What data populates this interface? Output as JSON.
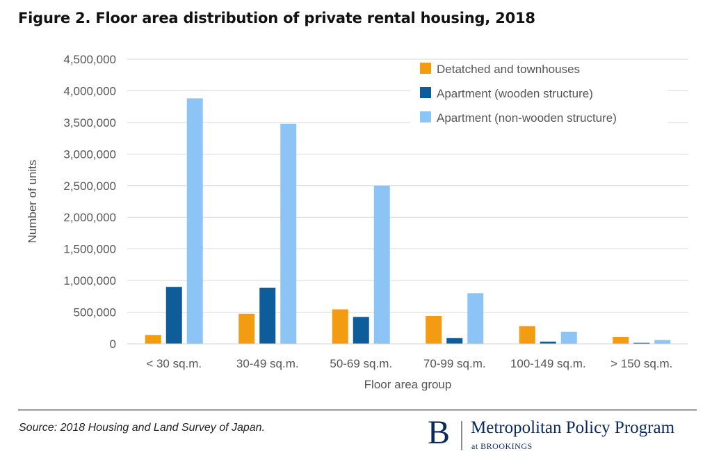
{
  "figure": {
    "title": "Figure 2. Floor area distribution of private rental housing, 2018"
  },
  "chart_data": {
    "type": "bar",
    "categories": [
      "< 30 sq.m.",
      "30-49 sq.m.",
      "50-69 sq.m.",
      "70-99 sq.m.",
      "100-149 sq.m.",
      "> 150 sq.m."
    ],
    "series": [
      {
        "name": "Detatched and townhouses",
        "color": "#f39c12",
        "values": [
          140000,
          475000,
          545000,
          440000,
          280000,
          110000
        ]
      },
      {
        "name": "Apartment (wooden structure)",
        "color": "#0f5c9a",
        "values": [
          900000,
          885000,
          425000,
          90000,
          35000,
          15000
        ]
      },
      {
        "name": "Apartment (non-wooden structure)",
        "color": "#8cc4f5",
        "values": [
          3880000,
          3480000,
          2500000,
          800000,
          190000,
          60000
        ]
      }
    ],
    "xlabel": "Floor area group",
    "ylabel": "Number of units",
    "ylim": [
      0,
      4500000
    ],
    "yticks": [
      0,
      500000,
      1000000,
      1500000,
      2000000,
      2500000,
      3000000,
      3500000,
      4000000,
      4500000
    ],
    "ytick_labels": [
      "0",
      "500,000",
      "1,000,000",
      "1,500,000",
      "2,000,000",
      "2,500,000",
      "3,000,000",
      "3,500,000",
      "4,000,000",
      "4,500,000"
    ],
    "grid": true,
    "legend_position": "top-right"
  },
  "footer": {
    "source": "Source: 2018 Housing and Land Survey of Japan.",
    "logo_mark": "B",
    "logo_name": "Metropolitan Policy Program",
    "logo_sub": "at BROOKINGS"
  }
}
